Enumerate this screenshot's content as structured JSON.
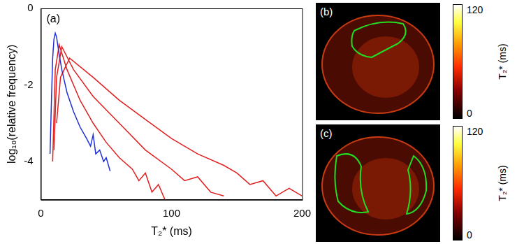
{
  "chart_data": {
    "type": "line",
    "panel_label": "(a)",
    "x_label": "T₂* (ms)",
    "y_label": "log₁₀(relative frequency)",
    "xlim": [
      0,
      200
    ],
    "xticks": [
      0,
      100,
      200
    ],
    "ylim": [
      -5,
      0
    ],
    "yticks": [
      -4,
      -2,
      0
    ],
    "grid": false,
    "series": [
      {
        "color": "#1f2fd6",
        "x": [
          7,
          8,
          9,
          10,
          11,
          12,
          14,
          16,
          20,
          25,
          30,
          35,
          38,
          40,
          42,
          45,
          48,
          50,
          53
        ],
        "values": [
          -3.8,
          -2.5,
          -1.3,
          -0.8,
          -0.65,
          -0.75,
          -1.2,
          -1.6,
          -2.2,
          -2.7,
          -3.1,
          -3.4,
          -3.6,
          -3.3,
          -3.8,
          -3.7,
          -4.0,
          -3.9,
          -4.25
        ]
      },
      {
        "color": "#e02020",
        "x": [
          9,
          11,
          14,
          20,
          30,
          40,
          50,
          60,
          70,
          75,
          80,
          85,
          90,
          95
        ],
        "values": [
          -4.0,
          -1.6,
          -0.95,
          -1.6,
          -2.4,
          -3.0,
          -3.5,
          -3.9,
          -4.2,
          -4.5,
          -4.3,
          -4.8,
          -4.6,
          -5.0
        ]
      },
      {
        "color": "#e02020",
        "x": [
          10,
          12,
          16,
          25,
          40,
          60,
          80,
          100,
          110,
          120,
          130,
          140
        ],
        "values": [
          -3.7,
          -1.8,
          -1.0,
          -1.6,
          -2.3,
          -3.0,
          -3.7,
          -4.2,
          -4.5,
          -4.4,
          -4.8,
          -4.9
        ]
      },
      {
        "color": "#e02020",
        "x": [
          12,
          15,
          22,
          40,
          60,
          80,
          100,
          120,
          140,
          150,
          160,
          170,
          180,
          190,
          200
        ],
        "values": [
          -3.0,
          -1.8,
          -1.3,
          -1.8,
          -2.4,
          -2.9,
          -3.4,
          -3.8,
          -4.1,
          -4.3,
          -4.6,
          -4.5,
          -4.9,
          -4.7,
          -4.9
        ]
      }
    ]
  },
  "panels": [
    {
      "label": "(b)",
      "colorbar": {
        "label": "T₂* (ms)",
        "range": [
          0,
          120
        ],
        "ticks": [
          0,
          120
        ]
      }
    },
    {
      "label": "(c)",
      "colorbar": {
        "label": "T₂* (ms)",
        "range": [
          0,
          120
        ],
        "ticks": [
          0,
          120
        ]
      }
    }
  ]
}
